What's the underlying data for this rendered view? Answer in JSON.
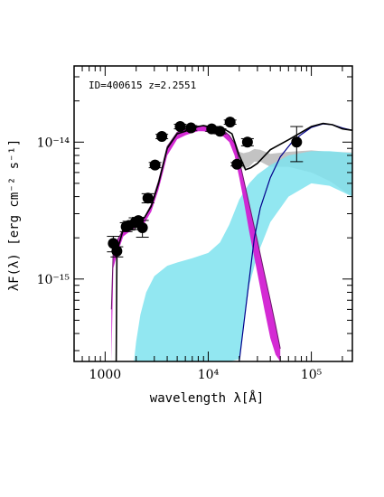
{
  "chart_data": {
    "type": "scatter",
    "annotation": "ID=400615 z=2.2551",
    "xlabel": "wavelength λ[Å]",
    "ylabel": "λF(λ) [erg cm⁻² s⁻¹]",
    "xscale": "log",
    "yscale": "log",
    "xlim": [
      500,
      250000
    ],
    "ylim": [
      2.5e-16,
      3.6e-14
    ],
    "x_major_ticks": [
      {
        "value": 1000,
        "label": "1000"
      },
      {
        "value": 10000,
        "label": "10⁴"
      },
      {
        "value": 100000,
        "label": "10⁵"
      }
    ],
    "y_major_ticks": [
      {
        "value": 1e-15,
        "label": "10⁻¹⁵"
      },
      {
        "value": 1e-14,
        "label": "10⁻¹⁴"
      }
    ],
    "grid": false,
    "colors": {
      "observed": "#000000",
      "total_model": "#000000",
      "stellar_band": "#d21fd2",
      "stellar_line": "#6a1a6a",
      "starburst_band": "#7fe3ee",
      "gray_band": "#bdbdbd",
      "agn_line": "#00008b"
    },
    "series": [
      {
        "type": "scatter-errorbar",
        "x": [
          1200,
          1300,
          1600,
          1700,
          1950,
          2100,
          2300,
          2600,
          3050,
          3550,
          5350,
          6800,
          10800,
          13000,
          16300,
          19000,
          24000,
          72000
        ],
        "y": [
          1.82e-15,
          1.6e-15,
          2.41e-15,
          2.46e-15,
          2.58e-15,
          2.67e-15,
          2.37e-15,
          3.9e-15,
          6.8e-15,
          1.1e-14,
          1.3e-14,
          1.27e-14,
          1.25e-14,
          1.2e-14,
          1.4e-14,
          6.9e-15,
          1e-14,
          1e-14
        ],
        "yerr_low": [
          1.58e-15,
          1.45e-15,
          2.22e-15,
          2.28e-15,
          2.3e-15,
          2.5e-15,
          2.02e-15,
          3.6e-15,
          6.5e-15,
          1.06e-14,
          1.25e-14,
          1.22e-14,
          1.2e-14,
          1.15e-14,
          1.35e-14,
          6.7e-15,
          9.4e-15,
          7.2e-15
        ],
        "yerr_high": [
          2.05e-15,
          1.72e-15,
          2.58e-15,
          2.64e-15,
          2.8e-15,
          2.82e-15,
          2.68e-15,
          4.2e-15,
          7.1e-15,
          1.14e-14,
          1.35e-14,
          1.32e-14,
          1.3e-14,
          1.25e-14,
          1.45e-14,
          7.1e-15,
          1.06e-14,
          1.3e-14
        ]
      },
      {
        "type": "line",
        "x": [
          1280,
          1300,
          1500,
          1700,
          2000,
          2400,
          2800,
          3300,
          4000,
          5000,
          6000,
          7000,
          8000,
          9000,
          11000,
          14000,
          17000,
          20000,
          23000,
          26000,
          30000,
          40000,
          60000,
          80000,
          100000,
          130000,
          160000,
          200000,
          250000
        ],
        "y": [
          2.5e-16,
          1.6e-15,
          2.3e-15,
          2.4e-15,
          2.6e-15,
          2.8e-15,
          3.4e-15,
          5e-15,
          9e-15,
          1.15e-14,
          1.2e-14,
          1.25e-14,
          1.3e-14,
          1.32e-14,
          1.28e-14,
          1.26e-14,
          1.15e-14,
          8e-15,
          6.3e-15,
          6.5e-15,
          7e-15,
          8.8e-15,
          1.04e-14,
          1.18e-14,
          1.3e-14,
          1.37e-14,
          1.34e-14,
          1.25e-14,
          1.22e-14
        ]
      },
      {
        "type": "band",
        "x": [
          1150,
          1200,
          1300,
          1500,
          1700,
          2000,
          2400,
          2800,
          3300,
          4000,
          5000,
          6000,
          7000,
          8000,
          9000,
          11000,
          14000,
          16000,
          18000,
          20000,
          22000,
          25000,
          30000,
          35000,
          40000,
          45000,
          50000
        ],
        "y_low": [
          2.5e-16,
          1.2e-15,
          1.5e-15,
          2.05e-15,
          2.2e-15,
          2.4e-15,
          2.55e-15,
          3.1e-15,
          4.5e-15,
          8e-15,
          1.05e-14,
          1.12e-14,
          1.17e-14,
          1.2e-14,
          1.2e-14,
          1.16e-14,
          1.1e-14,
          1e-14,
          8e-15,
          5.5e-15,
          3.8e-15,
          2.2e-15,
          1.1e-15,
          6e-16,
          3.7e-16,
          2.8e-16,
          2.5e-16
        ],
        "y_high": [
          6e-16,
          1.7e-15,
          1.9e-15,
          2.3e-15,
          2.45e-15,
          2.65e-15,
          2.8e-15,
          3.5e-15,
          5.2e-15,
          9.3e-15,
          1.18e-14,
          1.24e-14,
          1.28e-14,
          1.31e-14,
          1.31e-14,
          1.27e-14,
          1.22e-14,
          1.12e-14,
          9.8e-15,
          7.4e-15,
          5.4e-15,
          3.5e-15,
          1.9e-15,
          1.1e-15,
          7e-16,
          4.6e-16,
          3.1e-16
        ]
      },
      {
        "type": "band",
        "x": [
          1900,
          2000,
          2200,
          2500,
          3000,
          4000,
          5000,
          7000,
          10000,
          13000,
          16000,
          20000,
          25000,
          30000,
          40000,
          60000,
          100000,
          150000,
          250000
        ],
        "y_low": [
          2.5e-16,
          2.5e-16,
          2.5e-16,
          2.5e-16,
          2.5e-16,
          2.5e-16,
          2.5e-16,
          2.5e-16,
          2.5e-16,
          2.5e-16,
          2.5e-16,
          2.6e-16,
          9e-16,
          1.5e-15,
          2.6e-15,
          4e-15,
          5e-15,
          4.8e-15,
          4e-15
        ],
        "y_high": [
          2.5e-16,
          3.5e-16,
          5.5e-16,
          8e-16,
          1.05e-15,
          1.25e-15,
          1.32e-15,
          1.42e-15,
          1.55e-15,
          1.85e-15,
          2.5e-15,
          3.8e-15,
          5e-15,
          5.8e-15,
          6.8e-15,
          8e-15,
          8.6e-15,
          8.6e-15,
          8.3e-15
        ]
      },
      {
        "type": "band",
        "x": [
          19000,
          22000,
          25000,
          28000,
          32000,
          40000,
          60000,
          100000,
          150000,
          250000
        ],
        "y_low": [
          7e-15,
          6.4e-15,
          6.6e-15,
          7.2e-15,
          7.2e-15,
          6.6e-15,
          6.6e-15,
          6e-15,
          5.2e-15,
          4e-15
        ],
        "y_high": [
          8.6e-15,
          8.3e-15,
          8.5e-15,
          8.9e-15,
          8.8e-15,
          8.2e-15,
          8.5e-15,
          8.7e-15,
          8.5e-15,
          8.4e-15
        ]
      },
      {
        "type": "line",
        "x": [
          20000,
          22000,
          25000,
          28000,
          32000,
          40000,
          50000,
          65000,
          80000,
          100000,
          130000,
          160000,
          200000,
          250000
        ],
        "y": [
          2.5e-16,
          4.5e-16,
          1e-15,
          2e-15,
          3.3e-15,
          5.5e-15,
          7.8e-15,
          1e-14,
          1.14e-14,
          1.28e-14,
          1.36e-14,
          1.34e-14,
          1.27e-14,
          1.22e-14
        ]
      }
    ]
  }
}
